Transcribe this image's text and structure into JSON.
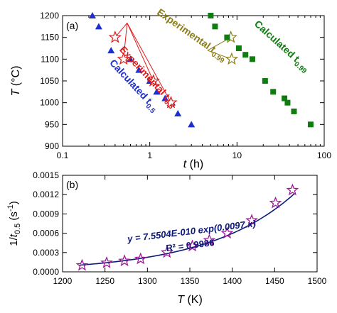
{
  "chart_data": [
    {
      "type": "scatter",
      "panel_label": "(a)",
      "xscale": "log",
      "xlim": [
        0.1,
        100
      ],
      "ylim": [
        900,
        1200
      ],
      "xticks": [
        0.1,
        1,
        10,
        100
      ],
      "xtick_labels": [
        "0.1",
        "1",
        "10",
        "100"
      ],
      "yticks": [
        900,
        950,
        1000,
        1050,
        1100,
        1150,
        1200
      ],
      "ytick_labels": [
        "900",
        "950",
        "1000",
        "1050",
        "1100",
        "1150",
        "1200"
      ],
      "xlabel_italic": "t",
      "xlabel_rest": " (h)",
      "ylabel_italic": "T",
      "ylabel_rest": " (°C)",
      "series": [
        {
          "marker": "triangle",
          "color": "#1d2fd0",
          "x": [
            0.22,
            0.26,
            0.36,
            0.6,
            0.75,
            1.0,
            1.2,
            1.5,
            1.8,
            2.1,
            3.0
          ],
          "y": [
            1200,
            1175,
            1120,
            1100,
            1075,
            1050,
            1025,
            1010,
            1000,
            975,
            950
          ]
        },
        {
          "marker": "star",
          "color": "#e11b1b",
          "x": [
            0.4,
            0.5,
            1.1,
            1.75
          ],
          "y": [
            1150,
            1100,
            1050,
            1000
          ]
        },
        {
          "marker": "star",
          "color": "#8b7d14",
          "x": [
            8.5,
            8.7
          ],
          "y": [
            1150,
            1100
          ]
        },
        {
          "marker": "square",
          "color": "#0f7d0f",
          "x": [
            5.0,
            5.6,
            7.7,
            10.5,
            12.5,
            15.0,
            21.0,
            26.0,
            35.0,
            38.0,
            45.0,
            70.0
          ],
          "y": [
            1200,
            1175,
            1150,
            1125,
            1110,
            1100,
            1050,
            1025,
            1010,
            1000,
            980,
            950
          ]
        }
      ],
      "annotations": [
        {
          "text": "Experimental t",
          "sub": "0.5",
          "color": "#e11b1b",
          "x": 0.9,
          "y": 1055,
          "angle": 47
        },
        {
          "text": "Calculated t",
          "sub": "0.5",
          "color": "#1d2fd0",
          "x": 0.62,
          "y": 1035,
          "angle": 47
        },
        {
          "text": "Experimental t",
          "sub": "0.99",
          "color": "#8b7d14",
          "x": 2.9,
          "y": 1150,
          "angle": 35
        },
        {
          "text": "Calculated t",
          "sub": "0.99",
          "color": "#0f7d0f",
          "x": 31.0,
          "y": 1125,
          "angle": 42
        }
      ],
      "connectors": [
        {
          "color": "#e11b1b",
          "from": [
            0.55,
            1183
          ],
          "to": [
            0.4,
            1150
          ]
        },
        {
          "color": "#e11b1b",
          "from": [
            0.55,
            1183
          ],
          "to": [
            0.5,
            1100
          ]
        },
        {
          "color": "#e11b1b",
          "from": [
            0.55,
            1183
          ],
          "to": [
            1.1,
            1050
          ]
        },
        {
          "color": "#e11b1b",
          "from": [
            0.55,
            1183
          ],
          "to": [
            1.75,
            1000
          ]
        },
        {
          "color": "#8b7d14",
          "from": [
            4.6,
            1120
          ],
          "to": [
            8.5,
            1150
          ]
        },
        {
          "color": "#8b7d14",
          "from": [
            4.6,
            1120
          ],
          "to": [
            8.7,
            1100
          ]
        }
      ]
    },
    {
      "type": "scatter",
      "panel_label": "(b)",
      "xlim": [
        1200,
        1500
      ],
      "ylim": [
        0,
        0.0015
      ],
      "xticks": [
        1200,
        1250,
        1300,
        1350,
        1400,
        1450,
        1500
      ],
      "xtick_labels": [
        "1200",
        "1250",
        "1300",
        "1350",
        "1400",
        "1450",
        "1500"
      ],
      "yticks": [
        0,
        0.0003,
        0.0006,
        0.0009,
        0.0012,
        0.0015
      ],
      "ytick_labels": [
        "0.0000",
        "0.0003",
        "0.0006",
        "0.0009",
        "0.0012",
        "0.0015"
      ],
      "xlabel_italic": "T",
      "xlabel_rest": " (K)",
      "ylabel_prefix": "1/",
      "ylabel_italic": "t",
      "ylabel_sub": "0.5",
      "ylabel_rest": " (s",
      "ylabel_sup": "-1",
      "ylabel_end": ")",
      "points": {
        "marker": "star",
        "color": "#a0179a",
        "x": [
          1223,
          1252,
          1273,
          1292,
          1323,
          1353,
          1373,
          1394,
          1423,
          1451,
          1471
        ],
        "y": [
          0.0001,
          0.00014,
          0.00017,
          0.0002,
          0.0003,
          0.0004,
          0.00049,
          0.0006,
          0.0008,
          0.00107,
          0.00127
        ]
      },
      "fit": {
        "color": "#0d1a7a",
        "a": 7.5504e-10,
        "b": 0.0097,
        "x_from": 1220,
        "x_to": 1473
      },
      "equation_text": "y = 7.5504E-010 exp(0.0097.x)",
      "r2_text": "R² = 0.9986",
      "equation_color": "#0d1a7a"
    }
  ]
}
